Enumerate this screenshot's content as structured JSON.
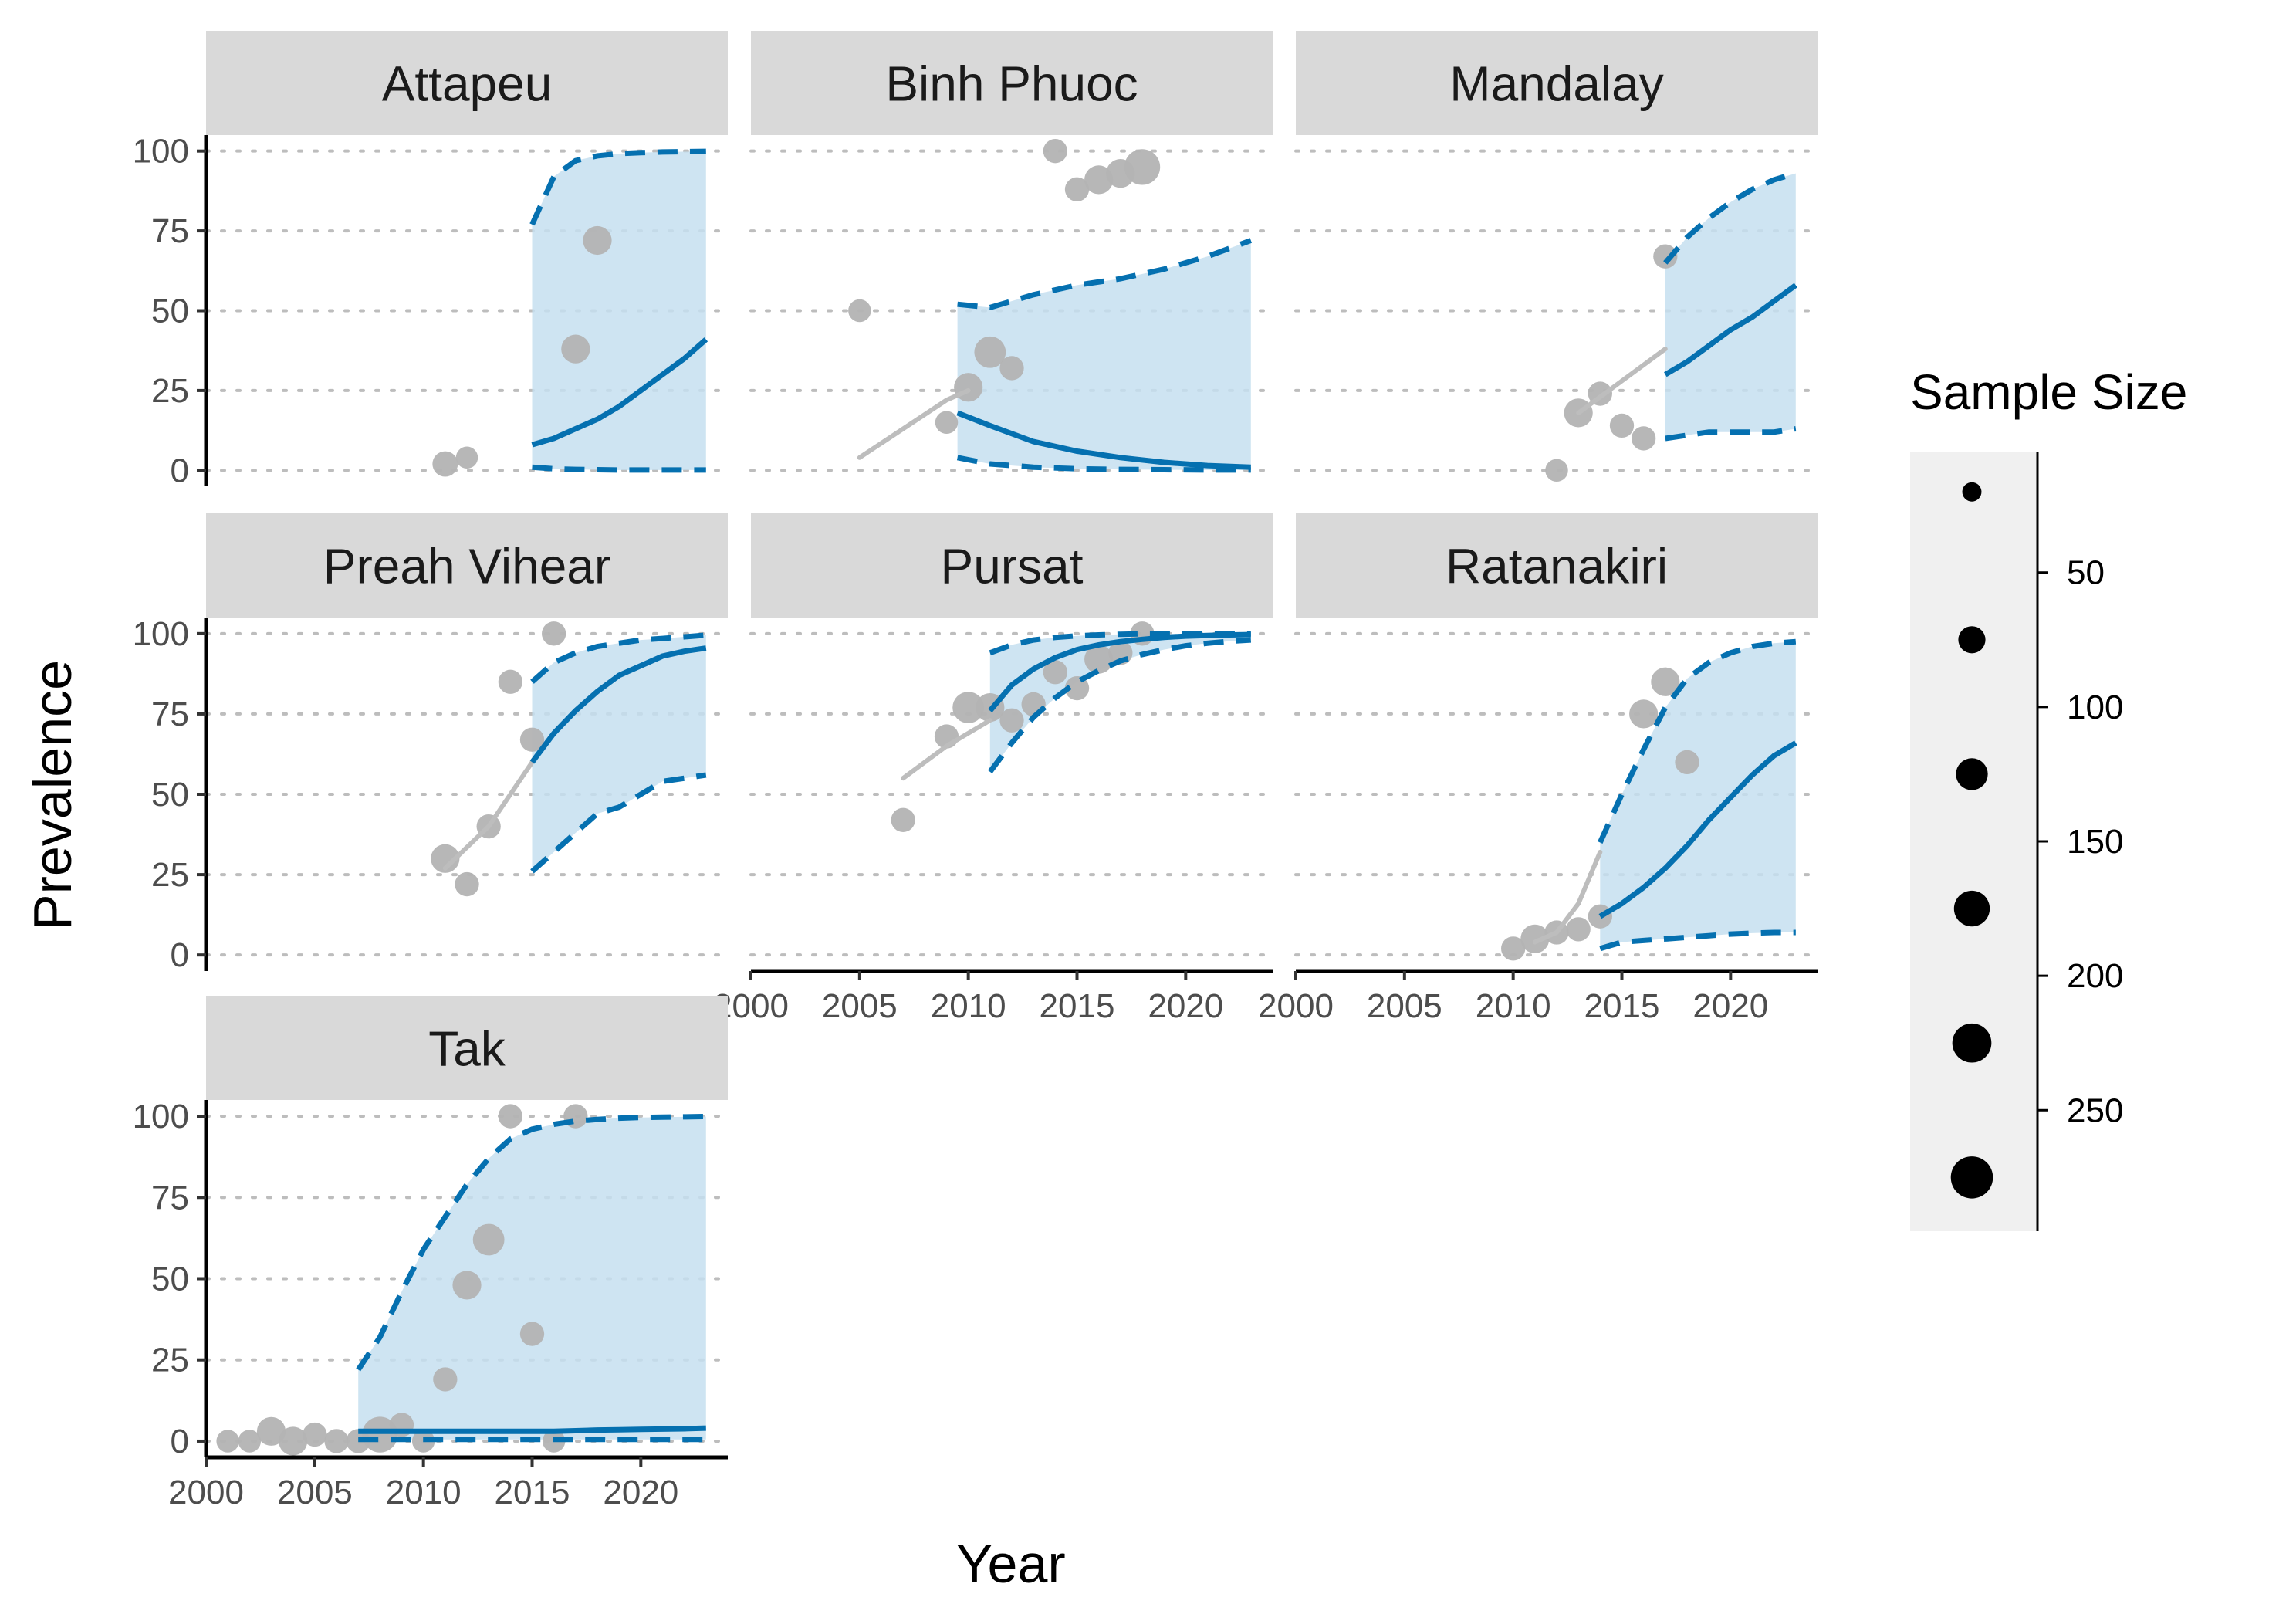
{
  "chart_data": {
    "type": "line",
    "title": "",
    "xlabel": "Year",
    "ylabel": "Prevalence",
    "xlim": [
      2000,
      2024
    ],
    "ylim": [
      0,
      100
    ],
    "x_ticks": [
      2000,
      2005,
      2010,
      2015,
      2020
    ],
    "y_ticks": [
      0,
      25,
      50,
      75,
      100
    ],
    "colors": {
      "model": "#0570b0",
      "band": "#c6dff0",
      "history": "#bdbdbd",
      "points": "#b3b3b3",
      "strip": "#d9d9d9",
      "legend_bg": "#f0f0f0",
      "grid": "#bdbdbd"
    },
    "legend": {
      "title": "Sample Size",
      "position": "right",
      "sizes": [
        20,
        75,
        125,
        175,
        225,
        275
      ],
      "ticks": [
        50,
        100,
        150,
        200,
        250
      ],
      "range": [
        5,
        295
      ]
    },
    "panels": [
      {
        "name": "Attapeu",
        "points": [
          [
            2011,
            2,
            60
          ],
          [
            2012,
            4,
            35
          ],
          [
            2017,
            38,
            90
          ],
          [
            2018,
            72,
            90
          ]
        ],
        "history": [],
        "model": {
          "x": [
            2015,
            2016,
            2017,
            2018,
            2019,
            2020,
            2021,
            2022,
            2023
          ],
          "mean": [
            8,
            10,
            13,
            16,
            20,
            25,
            30,
            35,
            41
          ],
          "lower": [
            1,
            0.5,
            0.3,
            0.2,
            0.1,
            0.1,
            0.1,
            0.1,
            0.1
          ],
          "upper": [
            77,
            92,
            97,
            98.5,
            99.2,
            99.5,
            99.7,
            99.8,
            99.9
          ]
        }
      },
      {
        "name": "Binh Phuoc",
        "points": [
          [
            2005,
            50,
            40
          ],
          [
            2009,
            15,
            40
          ],
          [
            2010,
            26,
            90
          ],
          [
            2011,
            37,
            120
          ],
          [
            2012,
            32,
            50
          ],
          [
            2014,
            100,
            50
          ],
          [
            2015,
            88,
            50
          ],
          [
            2016,
            91,
            90
          ],
          [
            2017,
            93,
            90
          ],
          [
            2018,
            95,
            175
          ]
        ],
        "history": [
          [
            2005,
            4
          ],
          [
            2007,
            13
          ],
          [
            2009,
            22
          ],
          [
            2010,
            25
          ]
        ],
        "model": {
          "x": [
            2009.5,
            2011,
            2013,
            2015,
            2017,
            2019,
            2021,
            2023
          ],
          "mean": [
            18,
            14,
            9,
            6,
            4,
            2.5,
            1.5,
            1
          ],
          "lower": [
            4,
            2,
            1,
            0.5,
            0.3,
            0.2,
            0.1,
            0.1
          ],
          "upper": [
            52,
            51,
            55,
            58,
            60,
            63,
            67,
            72
          ]
        }
      },
      {
        "name": "Mandalay",
        "points": [
          [
            2012,
            0,
            40
          ],
          [
            2013,
            18,
            90
          ],
          [
            2014,
            24,
            50
          ],
          [
            2015,
            14,
            50
          ],
          [
            2016,
            10,
            50
          ],
          [
            2017,
            67,
            50
          ]
        ],
        "history": [
          [
            2013,
            18
          ],
          [
            2015,
            28
          ],
          [
            2017,
            38
          ]
        ],
        "model": {
          "x": [
            2017,
            2018,
            2019,
            2020,
            2021,
            2022,
            2023
          ],
          "mean": [
            30,
            34,
            39,
            44,
            48,
            53,
            58
          ],
          "lower": [
            10,
            11,
            12,
            12,
            12,
            12,
            13
          ],
          "upper": [
            65,
            73,
            79,
            84,
            88,
            91,
            93
          ]
        }
      },
      {
        "name": "Preah Vihear",
        "points": [
          [
            2011,
            30,
            90
          ],
          [
            2012,
            22,
            50
          ],
          [
            2013,
            40,
            50
          ],
          [
            2014,
            85,
            50
          ],
          [
            2015,
            67,
            50
          ],
          [
            2016,
            100,
            50
          ]
        ],
        "history": [
          [
            2011,
            27
          ],
          [
            2013,
            40
          ],
          [
            2015,
            60
          ]
        ],
        "model": {
          "x": [
            2015,
            2016,
            2017,
            2018,
            2019,
            2020,
            2021,
            2022,
            2023
          ],
          "mean": [
            60,
            69,
            76,
            82,
            87,
            90,
            93,
            94.5,
            95.5
          ],
          "lower": [
            26,
            32,
            38,
            44,
            46,
            50,
            54,
            55,
            56
          ],
          "upper": [
            85,
            91,
            94,
            96,
            97,
            98,
            98.5,
            99,
            99.5
          ]
        }
      },
      {
        "name": "Pursat",
        "points": [
          [
            2007,
            42,
            50
          ],
          [
            2009,
            68,
            50
          ],
          [
            2010,
            77,
            120
          ],
          [
            2011,
            77,
            90
          ],
          [
            2012,
            73,
            50
          ],
          [
            2013,
            78,
            50
          ],
          [
            2014,
            88,
            50
          ],
          [
            2015,
            83,
            50
          ],
          [
            2016,
            92,
            90
          ],
          [
            2017,
            94,
            50
          ],
          [
            2018,
            100,
            50
          ]
        ],
        "history": [
          [
            2007,
            55
          ],
          [
            2009,
            65
          ],
          [
            2011,
            73
          ]
        ],
        "model": {
          "x": [
            2011,
            2012,
            2013,
            2014,
            2015,
            2016,
            2017,
            2018,
            2019,
            2020,
            2021,
            2022,
            2023
          ],
          "mean": [
            76,
            84,
            89,
            92.5,
            95,
            96.5,
            97.5,
            98.2,
            98.8,
            99.2,
            99.4,
            99.6,
            99.7
          ],
          "lower": [
            57,
            66,
            74,
            80,
            85,
            88.5,
            91.5,
            93.5,
            95,
            96.2,
            97,
            97.6,
            98
          ],
          "upper": [
            94,
            96.5,
            98,
            98.8,
            99.3,
            99.6,
            99.8,
            99.9,
            99.9,
            99.95,
            99.97,
            99.98,
            99.99
          ]
        }
      },
      {
        "name": "Ratanakiri",
        "points": [
          [
            2010,
            2,
            50
          ],
          [
            2011,
            5,
            90
          ],
          [
            2012,
            7,
            50
          ],
          [
            2013,
            8,
            50
          ],
          [
            2014,
            12,
            50
          ],
          [
            2016,
            75,
            90
          ],
          [
            2017,
            85,
            90
          ],
          [
            2018,
            60,
            50
          ]
        ],
        "history": [
          [
            2011,
            4
          ],
          [
            2012,
            7
          ],
          [
            2013,
            16
          ],
          [
            2014,
            32
          ]
        ],
        "model": {
          "x": [
            2014,
            2015,
            2016,
            2017,
            2018,
            2019,
            2020,
            2021,
            2022,
            2023
          ],
          "mean": [
            12,
            16,
            21,
            27,
            34,
            42,
            49,
            56,
            62,
            66
          ],
          "lower": [
            2,
            4,
            4.5,
            5,
            5.5,
            6,
            6.5,
            6.8,
            7,
            7
          ],
          "upper": [
            35,
            50,
            64,
            77,
            86,
            91,
            94,
            96,
            97,
            97.5
          ]
        }
      },
      {
        "name": "Tak",
        "points": [
          [
            2001,
            0,
            40
          ],
          [
            2002,
            0,
            40
          ],
          [
            2003,
            3,
            90
          ],
          [
            2004,
            0,
            90
          ],
          [
            2005,
            2,
            50
          ],
          [
            2006,
            0,
            50
          ],
          [
            2007,
            0,
            50
          ],
          [
            2008,
            2,
            175
          ],
          [
            2009,
            5,
            50
          ],
          [
            2010,
            0,
            40
          ],
          [
            2011,
            19,
            50
          ],
          [
            2012,
            48,
            90
          ],
          [
            2013,
            62,
            120
          ],
          [
            2014,
            100,
            50
          ],
          [
            2015,
            33,
            50
          ],
          [
            2016,
            0,
            40
          ],
          [
            2017,
            100,
            50
          ]
        ],
        "history": [],
        "model": {
          "x": [
            2007,
            2008,
            2009,
            2010,
            2011,
            2012,
            2013,
            2014,
            2015,
            2016,
            2017,
            2018,
            2019,
            2020,
            2021,
            2022,
            2023
          ],
          "mean": [
            3,
            3,
            3,
            3,
            3,
            3,
            3,
            3,
            3,
            3,
            3.2,
            3.4,
            3.5,
            3.6,
            3.7,
            3.8,
            4
          ],
          "lower": [
            0.5,
            0.5,
            0.5,
            0.5,
            0.5,
            0.5,
            0.5,
            0.5,
            0.5,
            0.5,
            0.5,
            0.5,
            0.5,
            0.5,
            0.5,
            0.5,
            0.5
          ],
          "upper": [
            22,
            32,
            46,
            59,
            69,
            79,
            87,
            93,
            96,
            97.5,
            98.5,
            99,
            99.4,
            99.6,
            99.7,
            99.8,
            99.9
          ]
        }
      }
    ]
  }
}
